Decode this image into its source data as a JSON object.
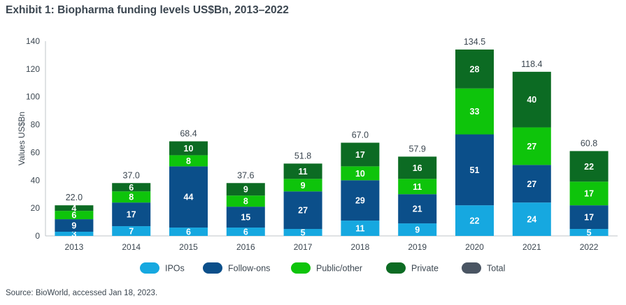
{
  "title": "Exhibit 1: Biopharma funding levels US$Bn, 2013–2022",
  "source": "Source: BioWorld, accessed Jan 18, 2023.",
  "chart_data": {
    "type": "bar",
    "stacked": true,
    "ylabel": "Values US$Bn",
    "xlabel": "",
    "ylim": [
      0,
      140
    ],
    "yticks": [
      0,
      20,
      40,
      60,
      80,
      100,
      120,
      140
    ],
    "grid": false,
    "legend_position": "bottom",
    "categories": [
      "2013",
      "2014",
      "2015",
      "2016",
      "2017",
      "2018",
      "2019",
      "2020",
      "2021",
      "2022"
    ],
    "series": [
      {
        "name": "IPOs",
        "color": "#16a8e0",
        "values": [
          3,
          7,
          6,
          6,
          5,
          11,
          9,
          22,
          24,
          5
        ]
      },
      {
        "name": "Follow-ons",
        "color": "#0b4f8a",
        "values": [
          9,
          17,
          44,
          15,
          27,
          29,
          21,
          51,
          27,
          17
        ]
      },
      {
        "name": "Public/other",
        "color": "#0ec40b",
        "values": [
          6,
          8,
          8,
          8,
          9,
          10,
          11,
          33,
          27,
          17
        ]
      },
      {
        "name": "Private",
        "color": "#0c6b23",
        "values": [
          4,
          6,
          10,
          9,
          11,
          17,
          16,
          28,
          40,
          22
        ]
      }
    ],
    "totals": {
      "name": "Total",
      "color": "#4a5563",
      "values": [
        "22.0",
        "37.0",
        "68.4",
        "37.6",
        "51.8",
        "67.0",
        "57.9",
        "134.5",
        "118.4",
        "60.8"
      ]
    }
  }
}
